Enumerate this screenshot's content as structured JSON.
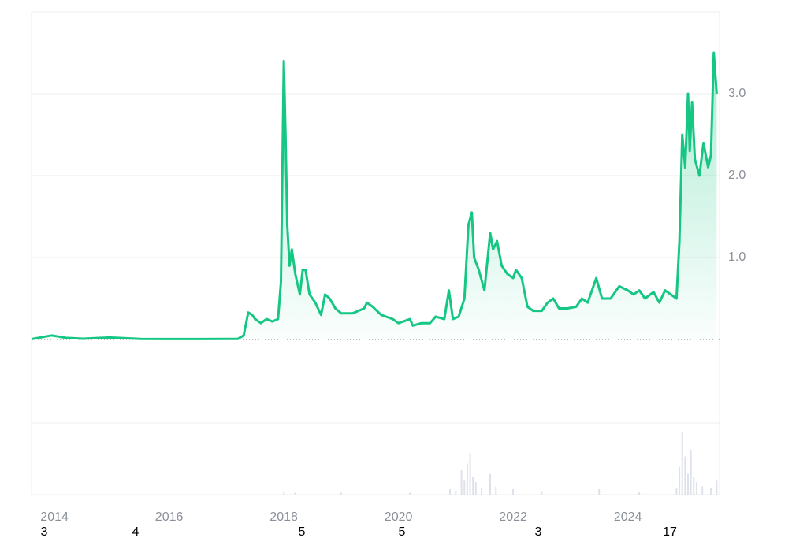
{
  "chart_data": {
    "type": "line",
    "x": [
      2013.6,
      2013.95,
      2014.2,
      2014.5,
      2014.96,
      2015.5,
      2016.0,
      2016.5,
      2017.0,
      2017.2,
      2017.3,
      2017.38,
      2017.45,
      2017.5,
      2017.6,
      2017.7,
      2017.8,
      2017.9,
      2017.95,
      2018.0,
      2018.03,
      2018.06,
      2018.1,
      2018.14,
      2018.2,
      2018.28,
      2018.33,
      2018.38,
      2018.45,
      2018.55,
      2018.65,
      2018.72,
      2018.8,
      2018.9,
      2019.0,
      2019.2,
      2019.4,
      2019.45,
      2019.55,
      2019.7,
      2019.9,
      2020.0,
      2020.2,
      2020.25,
      2020.4,
      2020.55,
      2020.65,
      2020.8,
      2020.88,
      2020.95,
      2021.05,
      2021.15,
      2021.22,
      2021.28,
      2021.32,
      2021.4,
      2021.5,
      2021.6,
      2021.65,
      2021.72,
      2021.8,
      2021.9,
      2022.0,
      2022.05,
      2022.15,
      2022.25,
      2022.35,
      2022.5,
      2022.6,
      2022.7,
      2022.8,
      2022.95,
      2023.1,
      2023.2,
      2023.3,
      2023.45,
      2023.55,
      2023.7,
      2023.85,
      2024.0,
      2024.1,
      2024.2,
      2024.3,
      2024.45,
      2024.55,
      2024.65,
      2024.75,
      2024.85,
      2024.9,
      2024.95,
      2025.0,
      2025.05,
      2025.08,
      2025.12,
      2025.17,
      2025.25,
      2025.32,
      2025.4,
      2025.45,
      2025.5,
      2025.55
    ],
    "series": [
      {
        "color": "#16c784",
        "values": [
          0.005,
          0.05,
          0.02,
          0.01,
          0.025,
          0.008,
          0.006,
          0.006,
          0.007,
          0.008,
          0.05,
          0.33,
          0.3,
          0.25,
          0.2,
          0.25,
          0.22,
          0.25,
          0.7,
          3.4,
          2.5,
          1.4,
          0.9,
          1.1,
          0.8,
          0.55,
          0.85,
          0.85,
          0.55,
          0.45,
          0.3,
          0.55,
          0.5,
          0.38,
          0.32,
          0.32,
          0.38,
          0.45,
          0.4,
          0.3,
          0.25,
          0.2,
          0.25,
          0.17,
          0.2,
          0.2,
          0.28,
          0.25,
          0.6,
          0.25,
          0.28,
          0.5,
          1.4,
          1.55,
          1.0,
          0.85,
          0.6,
          1.3,
          1.1,
          1.2,
          0.9,
          0.8,
          0.75,
          0.85,
          0.75,
          0.4,
          0.35,
          0.35,
          0.45,
          0.5,
          0.38,
          0.38,
          0.4,
          0.5,
          0.45,
          0.75,
          0.5,
          0.5,
          0.65,
          0.6,
          0.55,
          0.6,
          0.5,
          0.58,
          0.45,
          0.6,
          0.55,
          0.5,
          1.2,
          2.5,
          2.1,
          3.0,
          2.3,
          2.9,
          2.2,
          2.0,
          2.4,
          2.1,
          2.25,
          3.5,
          3.0
        ]
      }
    ],
    "baseline": 0,
    "xlim": [
      2013.6,
      2025.6
    ],
    "xticks": [
      2014,
      2016,
      2018,
      2020,
      2022,
      2024
    ],
    "ylim": [
      -1.0,
      4.0
    ],
    "yticks": [
      {
        "value": 1,
        "label": "1.0"
      },
      {
        "value": 2,
        "label": "2.0"
      },
      {
        "value": 3,
        "label": "3.0"
      }
    ],
    "grid": true,
    "volume": {
      "color": "#dde2ea",
      "ylim": [
        0,
        100
      ],
      "x": [
        2018.0,
        2018.2,
        2019.0,
        2020.2,
        2020.9,
        2021.0,
        2021.1,
        2021.15,
        2021.2,
        2021.25,
        2021.3,
        2021.35,
        2021.45,
        2021.6,
        2021.7,
        2022.0,
        2022.5,
        2023.5,
        2024.2,
        2024.85,
        2024.9,
        2024.95,
        2025.0,
        2025.05,
        2025.1,
        2025.15,
        2025.2,
        2025.3,
        2025.45,
        2025.55
      ],
      "values": [
        4,
        3,
        3,
        3,
        8,
        6,
        35,
        20,
        45,
        60,
        25,
        18,
        10,
        30,
        12,
        8,
        5,
        8,
        4,
        10,
        40,
        90,
        55,
        30,
        65,
        25,
        18,
        12,
        10,
        20
      ]
    }
  },
  "footer_counts": [
    3,
    4,
    5,
    5,
    3,
    17
  ]
}
